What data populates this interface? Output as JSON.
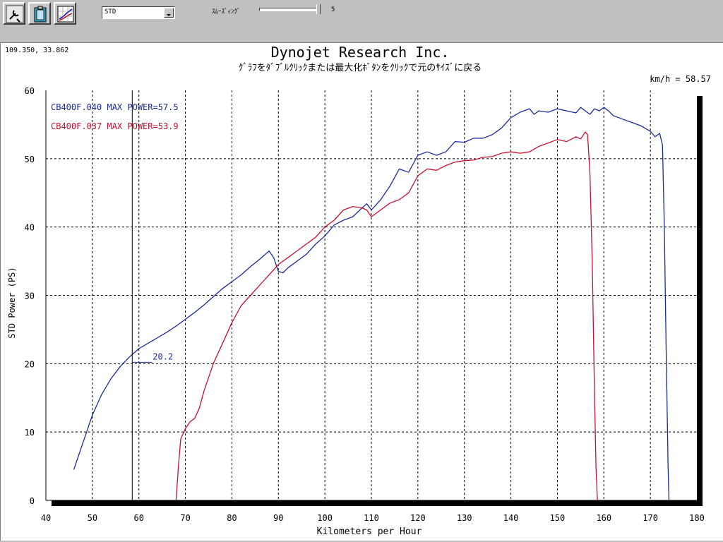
{
  "toolbar": {
    "buttons": [
      {
        "name": "run-tools-button",
        "icon": "wrench-tools-icon"
      },
      {
        "name": "clipboard-button",
        "icon": "clipboard-icon"
      },
      {
        "name": "graph-options-button",
        "icon": "graph-options-icon"
      }
    ],
    "preset_value": "STD",
    "smoothing_label": "ｽﾑｰｽﾞｨﾝｸﾞ",
    "smoothing_value": "5"
  },
  "chart_data": {
    "type": "line",
    "title": "Dynojet  Research  Inc.",
    "subtitle": "ｸﾞﾗﾌをﾀﾞﾌﾞﾙｸﾘｯｸまたは最大化ﾎﾞﾀﾝをｸﾘｯｸで元のｻｲｽﾞに戻る",
    "xlabel": "Kilometers per Hour",
    "ylabel": "STD Power (PS)",
    "xlim": [
      40,
      180
    ],
    "ylim": [
      0,
      60
    ],
    "xticks": [
      40,
      50,
      60,
      70,
      80,
      90,
      100,
      110,
      120,
      130,
      140,
      150,
      160,
      170,
      180
    ],
    "yticks": [
      0,
      10,
      20,
      30,
      40,
      50,
      60
    ],
    "grid": true,
    "cursor_readout": "109.350, 33.862",
    "cursor_speed_label": "km/h = 58.57",
    "cursor_x": 58.57,
    "cursor_value_label": "20.2",
    "cursor_value": 20.2,
    "series": [
      {
        "name": "CB400F.040  MAX POWER=57.5",
        "color": "#1c2a9a",
        "x": [
          46,
          48,
          50,
          52,
          54,
          56,
          58,
          60,
          62,
          64,
          66,
          68,
          70,
          72,
          74,
          76,
          78,
          80,
          82,
          84,
          86,
          88,
          89,
          90,
          91,
          92,
          94,
          96,
          98,
          100,
          102,
          104,
          106,
          108,
          109,
          110,
          112,
          114,
          116,
          118,
          120,
          122,
          124,
          126,
          128,
          130,
          132,
          134,
          136,
          138,
          140,
          142,
          144,
          145,
          146,
          148,
          150,
          152,
          154,
          155,
          156,
          157,
          158,
          159,
          160,
          161,
          162,
          164,
          166,
          168,
          170,
          171,
          172,
          172.6,
          173,
          173.4,
          173.8,
          174
        ],
        "y": [
          4.5,
          8.5,
          12.5,
          15.5,
          17.8,
          19.6,
          21,
          22.2,
          23,
          23.8,
          24.6,
          25.5,
          26.5,
          27.5,
          28.6,
          29.8,
          31,
          32,
          33,
          34.2,
          35.3,
          36.5,
          35.5,
          33.5,
          33.3,
          34,
          35,
          36,
          37.5,
          38.7,
          40.3,
          41,
          41.5,
          42.8,
          43.4,
          42.5,
          44,
          46,
          48.5,
          48,
          50.5,
          51,
          50.5,
          51,
          52.5,
          52.4,
          53,
          53,
          53.5,
          54.5,
          56,
          56.8,
          57.3,
          56.5,
          57,
          56.8,
          57.3,
          57,
          56.7,
          57.5,
          57,
          56.5,
          57.3,
          57,
          57.5,
          57,
          56.3,
          55.8,
          55.3,
          54.8,
          54,
          53.2,
          53.7,
          52,
          40,
          22,
          5,
          0
        ]
      },
      {
        "name": "CB400F.037  MAX POWER=53.9",
        "color": "#c8102e",
        "x": [
          68,
          68.5,
          69,
          70,
          71,
          72,
          73,
          74,
          76,
          78,
          80,
          82,
          84,
          86,
          88,
          90,
          92,
          94,
          96,
          98,
          100,
          102,
          104,
          106,
          108,
          109,
          110,
          112,
          114,
          116,
          118,
          120,
          122,
          124,
          126,
          128,
          130,
          132,
          134,
          136,
          138,
          140,
          142,
          144,
          146,
          148,
          150,
          152,
          154,
          155,
          156,
          156.5,
          157,
          157.5,
          158,
          158.3,
          158.6
        ],
        "y": [
          0,
          5,
          9,
          10.5,
          11.5,
          12,
          13.5,
          16,
          20,
          23,
          26,
          28.5,
          30,
          31.5,
          33,
          34.5,
          35.5,
          36.5,
          37.5,
          38.5,
          40,
          41,
          42.5,
          43,
          42.8,
          42.5,
          41.5,
          42.5,
          43.5,
          44,
          45,
          47.5,
          48.5,
          48.3,
          49,
          49.5,
          49.7,
          49.8,
          50.2,
          50.3,
          50.8,
          51,
          50.8,
          51,
          51.8,
          52.3,
          52.8,
          52.5,
          53.2,
          52.9,
          53.9,
          53.5,
          48,
          35,
          15,
          5,
          0
        ]
      }
    ]
  }
}
